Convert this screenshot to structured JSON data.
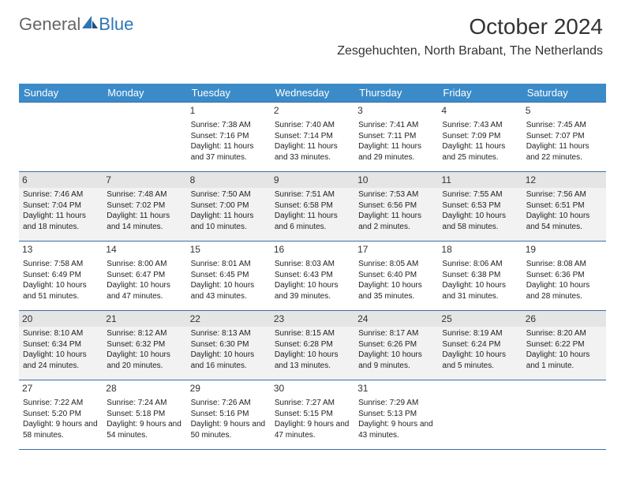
{
  "logo": {
    "part1": "General",
    "part2": "Blue"
  },
  "header": {
    "month_year": "October 2024",
    "location": "Zesgehuchten, North Brabant, The Netherlands"
  },
  "theme": {
    "header_bg": "#3b8bc9",
    "header_text": "#ffffff",
    "cell_border": "#3b6ea5",
    "shaded_bg": "#f2f2f2",
    "shaded_num_bg": "#e5e5e5",
    "text_color": "#222222"
  },
  "weekdays": [
    "Sunday",
    "Monday",
    "Tuesday",
    "Wednesday",
    "Thursday",
    "Friday",
    "Saturday"
  ],
  "weeks": [
    {
      "shaded": false,
      "days": [
        null,
        null,
        {
          "n": "1",
          "sunrise": "7:38 AM",
          "sunset": "7:16 PM",
          "daylight": "11 hours and 37 minutes."
        },
        {
          "n": "2",
          "sunrise": "7:40 AM",
          "sunset": "7:14 PM",
          "daylight": "11 hours and 33 minutes."
        },
        {
          "n": "3",
          "sunrise": "7:41 AM",
          "sunset": "7:11 PM",
          "daylight": "11 hours and 29 minutes."
        },
        {
          "n": "4",
          "sunrise": "7:43 AM",
          "sunset": "7:09 PM",
          "daylight": "11 hours and 25 minutes."
        },
        {
          "n": "5",
          "sunrise": "7:45 AM",
          "sunset": "7:07 PM",
          "daylight": "11 hours and 22 minutes."
        }
      ]
    },
    {
      "shaded": true,
      "days": [
        {
          "n": "6",
          "sunrise": "7:46 AM",
          "sunset": "7:04 PM",
          "daylight": "11 hours and 18 minutes."
        },
        {
          "n": "7",
          "sunrise": "7:48 AM",
          "sunset": "7:02 PM",
          "daylight": "11 hours and 14 minutes."
        },
        {
          "n": "8",
          "sunrise": "7:50 AM",
          "sunset": "7:00 PM",
          "daylight": "11 hours and 10 minutes."
        },
        {
          "n": "9",
          "sunrise": "7:51 AM",
          "sunset": "6:58 PM",
          "daylight": "11 hours and 6 minutes."
        },
        {
          "n": "10",
          "sunrise": "7:53 AM",
          "sunset": "6:56 PM",
          "daylight": "11 hours and 2 minutes."
        },
        {
          "n": "11",
          "sunrise": "7:55 AM",
          "sunset": "6:53 PM",
          "daylight": "10 hours and 58 minutes."
        },
        {
          "n": "12",
          "sunrise": "7:56 AM",
          "sunset": "6:51 PM",
          "daylight": "10 hours and 54 minutes."
        }
      ]
    },
    {
      "shaded": false,
      "days": [
        {
          "n": "13",
          "sunrise": "7:58 AM",
          "sunset": "6:49 PM",
          "daylight": "10 hours and 51 minutes."
        },
        {
          "n": "14",
          "sunrise": "8:00 AM",
          "sunset": "6:47 PM",
          "daylight": "10 hours and 47 minutes."
        },
        {
          "n": "15",
          "sunrise": "8:01 AM",
          "sunset": "6:45 PM",
          "daylight": "10 hours and 43 minutes."
        },
        {
          "n": "16",
          "sunrise": "8:03 AM",
          "sunset": "6:43 PM",
          "daylight": "10 hours and 39 minutes."
        },
        {
          "n": "17",
          "sunrise": "8:05 AM",
          "sunset": "6:40 PM",
          "daylight": "10 hours and 35 minutes."
        },
        {
          "n": "18",
          "sunrise": "8:06 AM",
          "sunset": "6:38 PM",
          "daylight": "10 hours and 31 minutes."
        },
        {
          "n": "19",
          "sunrise": "8:08 AM",
          "sunset": "6:36 PM",
          "daylight": "10 hours and 28 minutes."
        }
      ]
    },
    {
      "shaded": true,
      "days": [
        {
          "n": "20",
          "sunrise": "8:10 AM",
          "sunset": "6:34 PM",
          "daylight": "10 hours and 24 minutes."
        },
        {
          "n": "21",
          "sunrise": "8:12 AM",
          "sunset": "6:32 PM",
          "daylight": "10 hours and 20 minutes."
        },
        {
          "n": "22",
          "sunrise": "8:13 AM",
          "sunset": "6:30 PM",
          "daylight": "10 hours and 16 minutes."
        },
        {
          "n": "23",
          "sunrise": "8:15 AM",
          "sunset": "6:28 PM",
          "daylight": "10 hours and 13 minutes."
        },
        {
          "n": "24",
          "sunrise": "8:17 AM",
          "sunset": "6:26 PM",
          "daylight": "10 hours and 9 minutes."
        },
        {
          "n": "25",
          "sunrise": "8:19 AM",
          "sunset": "6:24 PM",
          "daylight": "10 hours and 5 minutes."
        },
        {
          "n": "26",
          "sunrise": "8:20 AM",
          "sunset": "6:22 PM",
          "daylight": "10 hours and 1 minute."
        }
      ]
    },
    {
      "shaded": false,
      "days": [
        {
          "n": "27",
          "sunrise": "7:22 AM",
          "sunset": "5:20 PM",
          "daylight": "9 hours and 58 minutes."
        },
        {
          "n": "28",
          "sunrise": "7:24 AM",
          "sunset": "5:18 PM",
          "daylight": "9 hours and 54 minutes."
        },
        {
          "n": "29",
          "sunrise": "7:26 AM",
          "sunset": "5:16 PM",
          "daylight": "9 hours and 50 minutes."
        },
        {
          "n": "30",
          "sunrise": "7:27 AM",
          "sunset": "5:15 PM",
          "daylight": "9 hours and 47 minutes."
        },
        {
          "n": "31",
          "sunrise": "7:29 AM",
          "sunset": "5:13 PM",
          "daylight": "9 hours and 43 minutes."
        },
        null,
        null
      ]
    }
  ],
  "labels": {
    "sunrise": "Sunrise:",
    "sunset": "Sunset:",
    "daylight": "Daylight:"
  }
}
